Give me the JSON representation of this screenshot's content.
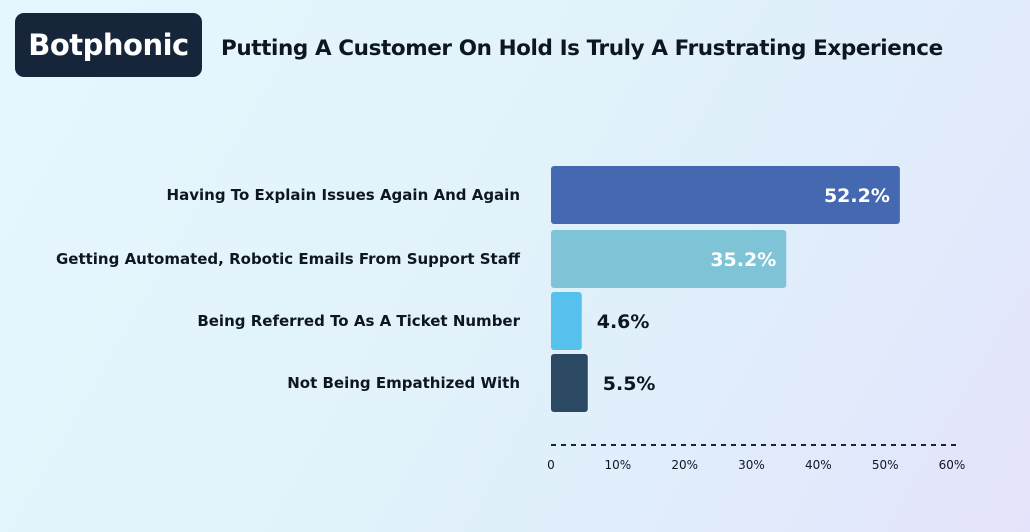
{
  "brand": {
    "name": "Botphonic",
    "box_color": "#16253a"
  },
  "chart_data": {
    "type": "bar",
    "orientation": "horizontal",
    "title": "Putting A Customer On Hold Is Truly A Frustrating Experience",
    "categories": [
      "Having To Explain Issues Again And Again",
      "Getting Automated, Robotic Emails From Support Staff",
      "Being Referred To As A Ticket Number",
      "Not Being Empathized With"
    ],
    "values": [
      52.2,
      35.2,
      4.6,
      5.5
    ],
    "value_labels": [
      "52.2%",
      "35.2%",
      "4.6%",
      "5.5%"
    ],
    "colors": [
      "#4469b1",
      "#7ec3d6",
      "#57c1ee",
      "#2c4964"
    ],
    "xlim": [
      0,
      60
    ],
    "ticks": [
      0,
      10,
      20,
      30,
      40,
      50,
      60
    ],
    "tick_labels": [
      "0",
      "10%",
      "20%",
      "30%",
      "40%",
      "50%",
      "60%"
    ],
    "xlabel": "",
    "ylabel": "",
    "grid": false,
    "legend": "none"
  }
}
